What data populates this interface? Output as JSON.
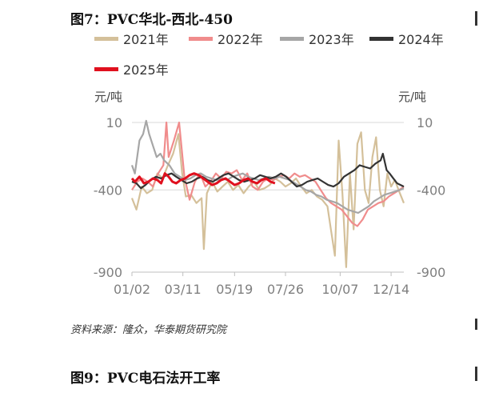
{
  "figure_title": "图7：PVC华北-西北-450",
  "unit_left": "元/吨",
  "unit_right": "元/吨",
  "source": "资料来源：隆众，华泰期货研究院",
  "next_figure_title": "图9：PVC电石法开工率",
  "colors": {
    "2021年": "#d4c09a",
    "2022年": "#f08c8c",
    "2023年": "#a6a6a6",
    "2024年": "#333333",
    "2025年": "#e0101e",
    "axis_text": "#7f7f7f",
    "grid": "#d9d9d9"
  },
  "chart_data": {
    "type": "line",
    "title": "PVC华北-西北-450",
    "ylabel": "元/吨",
    "ylim": [
      -900,
      10
    ],
    "yticks": [
      10,
      -400,
      -900
    ],
    "x_range": [
      "01/02",
      "12/31"
    ],
    "xticks": [
      "01/02",
      "03/11",
      "05/19",
      "07/26",
      "10/07",
      "12/14"
    ],
    "legend": [
      "2021年",
      "2022年",
      "2023年",
      "2024年",
      "2025年"
    ],
    "series": [
      {
        "name": "2021年",
        "points": [
          [
            "01/02",
            -450
          ],
          [
            "01/08",
            -520
          ],
          [
            "01/15",
            -380
          ],
          [
            "01/22",
            -420
          ],
          [
            "01/29",
            -400
          ],
          [
            "02/05",
            -300
          ],
          [
            "02/12",
            -330
          ],
          [
            "02/19",
            -250
          ],
          [
            "02/26",
            -180
          ],
          [
            "03/05",
            -60
          ],
          [
            "03/10",
            -300
          ],
          [
            "03/15",
            -440
          ],
          [
            "03/22",
            -430
          ],
          [
            "03/29",
            -480
          ],
          [
            "04/05",
            -450
          ],
          [
            "04/08",
            -760
          ],
          [
            "04/12",
            -420
          ],
          [
            "04/19",
            -350
          ],
          [
            "04/26",
            -410
          ],
          [
            "05/03",
            -380
          ],
          [
            "05/10",
            -350
          ],
          [
            "05/17",
            -400
          ],
          [
            "05/24",
            -370
          ],
          [
            "05/31",
            -420
          ],
          [
            "06/07",
            -380
          ],
          [
            "06/14",
            -350
          ],
          [
            "06/21",
            -400
          ],
          [
            "06/28",
            -390
          ],
          [
            "07/05",
            -370
          ],
          [
            "07/12",
            -330
          ],
          [
            "07/19",
            -350
          ],
          [
            "07/26",
            -380
          ],
          [
            "08/02",
            -360
          ],
          [
            "08/09",
            -330
          ],
          [
            "08/16",
            -380
          ],
          [
            "08/23",
            -420
          ],
          [
            "08/30",
            -400
          ],
          [
            "09/06",
            -440
          ],
          [
            "09/13",
            -460
          ],
          [
            "09/20",
            -500
          ],
          [
            "09/25",
            -650
          ],
          [
            "09/30",
            -800
          ],
          [
            "10/05",
            -100
          ],
          [
            "10/10",
            -420
          ],
          [
            "10/15",
            -870
          ],
          [
            "10/20",
            -300
          ],
          [
            "10/25",
            -640
          ],
          [
            "10/30",
            -120
          ],
          [
            "11/04",
            -50
          ],
          [
            "11/09",
            -400
          ],
          [
            "11/14",
            -480
          ],
          [
            "11/19",
            -200
          ],
          [
            "11/24",
            -80
          ],
          [
            "11/29",
            -400
          ],
          [
            "12/04",
            -500
          ],
          [
            "12/09",
            -300
          ],
          [
            "12/14",
            -380
          ],
          [
            "12/19",
            -340
          ],
          [
            "12/24",
            -400
          ],
          [
            "12/31",
            -480
          ]
        ]
      },
      {
        "name": "2022年",
        "points": [
          [
            "01/02",
            -400
          ],
          [
            "01/09",
            -350
          ],
          [
            "01/16",
            -330
          ],
          [
            "01/23",
            -350
          ],
          [
            "01/30",
            -380
          ],
          [
            "02/06",
            -300
          ],
          [
            "02/13",
            -250
          ],
          [
            "02/17",
            10
          ],
          [
            "02/20",
            -200
          ],
          [
            "02/27",
            -100
          ],
          [
            "03/06",
            10
          ],
          [
            "03/13",
            -320
          ],
          [
            "03/20",
            -460
          ],
          [
            "03/27",
            -350
          ],
          [
            "04/03",
            -300
          ],
          [
            "04/10",
            -380
          ],
          [
            "04/17",
            -350
          ],
          [
            "04/24",
            -300
          ],
          [
            "05/01",
            -330
          ],
          [
            "05/08",
            -290
          ],
          [
            "05/15",
            -300
          ],
          [
            "05/22",
            -280
          ],
          [
            "05/29",
            -340
          ],
          [
            "06/05",
            -300
          ],
          [
            "06/12",
            -380
          ],
          [
            "06/19",
            -400
          ],
          [
            "06/26",
            -350
          ],
          [
            "07/03",
            -330
          ],
          [
            "07/10",
            -340
          ],
          [
            "07/17",
            -320
          ],
          [
            "07/24",
            -310
          ],
          [
            "07/31",
            -330
          ],
          [
            "08/07",
            -300
          ],
          [
            "08/14",
            -320
          ],
          [
            "08/21",
            -310
          ],
          [
            "08/28",
            -330
          ],
          [
            "09/04",
            -350
          ],
          [
            "09/11",
            -400
          ],
          [
            "09/18",
            -450
          ],
          [
            "09/25",
            -480
          ],
          [
            "10/02",
            -500
          ],
          [
            "10/09",
            -520
          ],
          [
            "10/16",
            -560
          ],
          [
            "10/23",
            -600
          ],
          [
            "10/30",
            -620
          ],
          [
            "11/06",
            -580
          ],
          [
            "11/13",
            -520
          ],
          [
            "11/20",
            -500
          ],
          [
            "11/27",
            -480
          ],
          [
            "12/04",
            -470
          ],
          [
            "12/11",
            -440
          ],
          [
            "12/18",
            -420
          ],
          [
            "12/25",
            -400
          ],
          [
            "12/31",
            -380
          ]
        ]
      },
      {
        "name": "2023年",
        "points": [
          [
            "01/02",
            -250
          ],
          [
            "01/06",
            -300
          ],
          [
            "01/12",
            -100
          ],
          [
            "01/17",
            -60
          ],
          [
            "01/21",
            20
          ],
          [
            "01/25",
            -60
          ],
          [
            "01/30",
            -130
          ],
          [
            "02/04",
            -200
          ],
          [
            "02/09",
            -180
          ],
          [
            "02/14",
            -220
          ],
          [
            "02/21",
            -250
          ],
          [
            "02/28",
            -300
          ],
          [
            "03/07",
            -320
          ],
          [
            "03/14",
            -340
          ],
          [
            "03/21",
            -330
          ],
          [
            "03/28",
            -310
          ],
          [
            "04/04",
            -300
          ],
          [
            "04/11",
            -320
          ],
          [
            "04/18",
            -330
          ],
          [
            "04/25",
            -340
          ],
          [
            "05/02",
            -330
          ],
          [
            "05/09",
            -340
          ],
          [
            "05/16",
            -320
          ],
          [
            "05/23",
            -310
          ],
          [
            "05/30",
            -300
          ],
          [
            "06/06",
            -320
          ],
          [
            "06/13",
            -330
          ],
          [
            "06/20",
            -340
          ],
          [
            "06/27",
            -330
          ],
          [
            "07/04",
            -320
          ],
          [
            "07/11",
            -330
          ],
          [
            "07/18",
            -320
          ],
          [
            "07/25",
            -330
          ],
          [
            "08/01",
            -340
          ],
          [
            "08/08",
            -360
          ],
          [
            "08/15",
            -380
          ],
          [
            "08/22",
            -400
          ],
          [
            "08/29",
            -410
          ],
          [
            "09/05",
            -430
          ],
          [
            "09/12",
            -440
          ],
          [
            "09/19",
            -460
          ],
          [
            "09/26",
            -470
          ],
          [
            "10/03",
            -480
          ],
          [
            "10/10",
            -500
          ],
          [
            "10/17",
            -520
          ],
          [
            "10/24",
            -530
          ],
          [
            "10/31",
            -540
          ],
          [
            "11/07",
            -520
          ],
          [
            "11/14",
            -500
          ],
          [
            "11/21",
            -470
          ],
          [
            "11/28",
            -450
          ],
          [
            "12/05",
            -430
          ],
          [
            "12/12",
            -420
          ],
          [
            "12/19",
            -410
          ],
          [
            "12/26",
            -400
          ],
          [
            "12/31",
            -390
          ]
        ]
      },
      {
        "name": "2024年",
        "points": [
          [
            "01/02",
            -350
          ],
          [
            "01/08",
            -360
          ],
          [
            "01/14",
            -390
          ],
          [
            "01/20",
            -370
          ],
          [
            "01/27",
            -340
          ],
          [
            "02/03",
            -320
          ],
          [
            "02/10",
            -330
          ],
          [
            "02/17",
            -310
          ],
          [
            "02/24",
            -300
          ],
          [
            "03/02",
            -320
          ],
          [
            "03/09",
            -340
          ],
          [
            "03/16",
            -360
          ],
          [
            "03/23",
            -350
          ],
          [
            "03/30",
            -330
          ],
          [
            "04/06",
            -320
          ],
          [
            "04/13",
            -340
          ],
          [
            "04/20",
            -350
          ],
          [
            "04/27",
            -330
          ],
          [
            "05/04",
            -310
          ],
          [
            "05/11",
            -300
          ],
          [
            "05/18",
            -320
          ],
          [
            "05/25",
            -340
          ],
          [
            "06/01",
            -350
          ],
          [
            "06/08",
            -340
          ],
          [
            "06/15",
            -330
          ],
          [
            "06/22",
            -310
          ],
          [
            "06/29",
            -320
          ],
          [
            "07/06",
            -330
          ],
          [
            "07/13",
            -320
          ],
          [
            "07/20",
            -300
          ],
          [
            "07/27",
            -320
          ],
          [
            "08/03",
            -350
          ],
          [
            "08/10",
            -380
          ],
          [
            "08/17",
            -370
          ],
          [
            "08/24",
            -350
          ],
          [
            "08/31",
            -340
          ],
          [
            "09/07",
            -330
          ],
          [
            "09/14",
            -350
          ],
          [
            "09/21",
            -370
          ],
          [
            "09/28",
            -380
          ],
          [
            "10/05",
            -360
          ],
          [
            "10/12",
            -320
          ],
          [
            "10/19",
            -300
          ],
          [
            "10/26",
            -280
          ],
          [
            "11/02",
            -250
          ],
          [
            "11/09",
            -260
          ],
          [
            "11/16",
            -270
          ],
          [
            "11/23",
            -240
          ],
          [
            "11/30",
            -220
          ],
          [
            "12/03",
            -180
          ],
          [
            "12/08",
            -280
          ],
          [
            "12/12",
            -300
          ],
          [
            "12/17",
            -330
          ],
          [
            "12/22",
            -360
          ],
          [
            "12/31",
            -380
          ]
        ]
      },
      {
        "name": "2025年",
        "points": [
          [
            "01/02",
            -330
          ],
          [
            "01/06",
            -350
          ],
          [
            "01/12",
            -320
          ],
          [
            "01/18",
            -360
          ],
          [
            "01/24",
            -350
          ],
          [
            "01/30",
            -330
          ],
          [
            "02/05",
            -340
          ],
          [
            "02/10",
            -360
          ],
          [
            "02/15",
            -300
          ],
          [
            "02/20",
            -320
          ],
          [
            "02/25",
            -350
          ],
          [
            "03/02",
            -360
          ],
          [
            "03/08",
            -340
          ],
          [
            "03/14",
            -330
          ],
          [
            "03/20",
            -310
          ],
          [
            "03/26",
            -300
          ],
          [
            "04/01",
            -310
          ],
          [
            "04/07",
            -330
          ],
          [
            "04/13",
            -350
          ],
          [
            "04/19",
            -370
          ],
          [
            "04/25",
            -360
          ],
          [
            "05/01",
            -340
          ],
          [
            "05/07",
            -330
          ],
          [
            "05/13",
            -350
          ],
          [
            "05/19",
            -370
          ],
          [
            "05/25",
            -360
          ],
          [
            "05/31",
            -340
          ],
          [
            "06/06",
            -330
          ],
          [
            "06/12",
            -350
          ],
          [
            "06/18",
            -360
          ],
          [
            "06/24",
            -340
          ],
          [
            "06/30",
            -330
          ],
          [
            "07/06",
            -350
          ],
          [
            "07/12",
            -360
          ]
        ]
      }
    ]
  }
}
